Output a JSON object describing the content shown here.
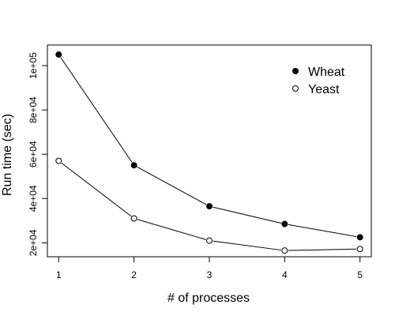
{
  "chart_data": {
    "type": "line",
    "title": "",
    "xlabel": "# of processes",
    "ylabel": "Run time (sec)",
    "x": [
      1,
      2,
      3,
      4,
      5
    ],
    "xticks": [
      "1",
      "2",
      "3",
      "4",
      "5"
    ],
    "xlim": [
      0.85,
      5.15
    ],
    "yticks": [
      {
        "value": 20000,
        "label": "2e+04"
      },
      {
        "value": 40000,
        "label": "4e+04"
      },
      {
        "value": 60000,
        "label": "6e+04"
      },
      {
        "value": 80000,
        "label": "8e+04"
      },
      {
        "value": 100000,
        "label": "1e+05"
      }
    ],
    "ylim": [
      13700,
      109300
    ],
    "grid": false,
    "legend_position": "top-right",
    "series": [
      {
        "name": "Wheat",
        "marker": "filled-circle",
        "color": "#000000",
        "values": [
          105000,
          55000,
          36500,
          28500,
          22500
        ]
      },
      {
        "name": "Yeast",
        "marker": "open-circle",
        "color": "#000000",
        "values": [
          57000,
          31000,
          21000,
          16500,
          17200
        ]
      }
    ]
  }
}
